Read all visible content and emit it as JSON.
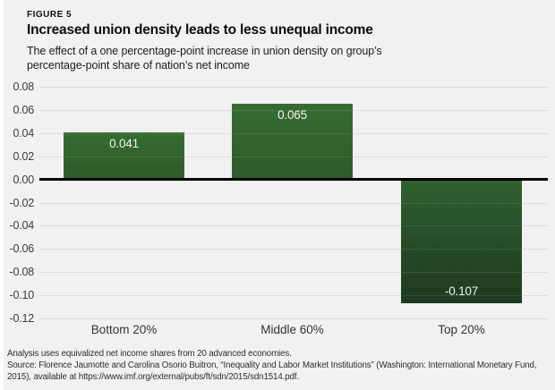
{
  "figure_label": "FIGURE 5",
  "title": "Increased union density leads to less unequal income",
  "subtitle_lines": [
    "The effect of a one percentage-point increase in union density on group’s",
    "percentage-point share of nation’s net income"
  ],
  "chart_data": {
    "type": "bar",
    "categories": [
      "Bottom 20%",
      "Middle 60%",
      "Top 20%"
    ],
    "values": [
      0.041,
      0.065,
      -0.107
    ],
    "value_labels": [
      "0.041",
      "0.065",
      "-0.107"
    ],
    "title": "Increased union density leads to less unequal income",
    "xlabel": "",
    "ylabel": "",
    "ylim": [
      -0.12,
      0.08
    ],
    "ytick_step": 0.02,
    "yticks": [
      "0.08",
      "0.06",
      "0.04",
      "0.02",
      "0.00",
      "-0.02",
      "-0.04",
      "-0.06",
      "-0.08",
      "-0.10",
      "-0.12"
    ],
    "grid": true,
    "legend": false,
    "colors": {
      "bar_positive_top": "#376b31",
      "bar_positive_bottom": "#2e5b2b",
      "bar_negative_top": "#306031",
      "bar_negative_bottom": "#1d3a1e",
      "background": "#f1f1f1",
      "gridline": "#dadada",
      "zero_line": "#000000",
      "value_text": "#ffffff"
    }
  },
  "notes": [
    "Analysis uses equivalized net income shares from 20 advanced economies.",
    "Source: Florence Jaumotte and Carolina Osorio Buitron, “Inequality and Labor Market Institutions” (Washington: International Monetary Fund,",
    "2015), available at https://www.imf.org/external/pubs/ft/sdn/2015/sdn1514.pdf."
  ]
}
